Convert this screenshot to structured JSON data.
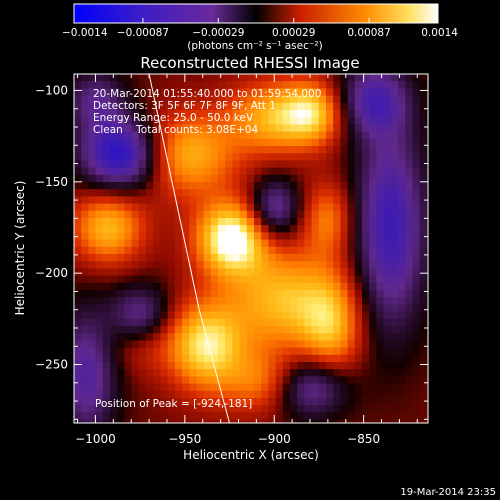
{
  "chart_data": {
    "type": "heatmap",
    "title": "Reconstructed RHESSI Image",
    "xlabel": "Heliocentric X (arcsec)",
    "ylabel": "Heliocentric Y (arcsec)",
    "xlim": [
      -1012,
      -814
    ],
    "ylim": [
      -282,
      -91
    ],
    "x_ticks": [
      -1000,
      -950,
      -900,
      -850
    ],
    "y_ticks": [
      -100,
      -150,
      -200,
      -250
    ],
    "x_tick_labels": [
      "−1000",
      "−950",
      "−900",
      "−850"
    ],
    "y_tick_labels": [
      "−100",
      "−150",
      "−200",
      "−250"
    ],
    "colorbar": {
      "min": -0.0014,
      "max": 0.0014,
      "tick_values": [
        -0.0014,
        -0.00087,
        -0.00029,
        0.00029,
        0.00087,
        0.0014
      ],
      "tick_labels": [
        "−0.0014",
        "−0.00087",
        "−0.00029",
        "0.00029",
        "0.00087",
        "0.0014"
      ],
      "units_label": "(photons cm⁻² s⁻¹ asec⁻²)"
    },
    "annotations": [
      "20-Mar-2014 01:55:40.000 to 01:59:54.000",
      "Detectors: 3F 5F 6F 7F 8F 9F, Att 1",
      "Energy Range: 25.0 - 50.0 keV",
      "Clean    Total counts: 3.08E+04"
    ],
    "peak_label": "Position of Peak = [-924,-181]",
    "peak_position": [
      -924,
      -181
    ],
    "limb_curve": [
      [
        -970,
        -91
      ],
      [
        -955,
        -160
      ],
      [
        -942,
        -220
      ],
      [
        -925,
        -282
      ]
    ],
    "blobs": [
      {
        "x": -924,
        "y": -181,
        "value": 0.00135,
        "sx": 14,
        "sy": 14
      },
      {
        "x": -938,
        "y": -240,
        "value": 0.0011,
        "sx": 15,
        "sy": 17
      },
      {
        "x": -950,
        "y": -135,
        "value": 0.0009,
        "sx": 20,
        "sy": 16
      },
      {
        "x": -900,
        "y": -115,
        "value": 0.00085,
        "sx": 18,
        "sy": 14
      },
      {
        "x": -895,
        "y": -215,
        "value": 0.0009,
        "sx": 22,
        "sy": 20
      },
      {
        "x": -993,
        "y": -175,
        "value": 0.0009,
        "sx": 14,
        "sy": 14
      },
      {
        "x": -878,
        "y": -112,
        "value": 0.0008,
        "sx": 12,
        "sy": 12
      },
      {
        "x": -868,
        "y": -230,
        "value": 0.00075,
        "sx": 12,
        "sy": 20
      },
      {
        "x": -870,
        "y": -170,
        "value": 0.0006,
        "sx": 10,
        "sy": 14
      },
      {
        "x": -975,
        "y": -235,
        "value": 0.0005,
        "sx": 14,
        "sy": 12
      },
      {
        "x": -905,
        "y": -260,
        "value": 0.0006,
        "sx": 16,
        "sy": 12
      },
      {
        "x": -985,
        "y": -135,
        "value": -0.0013,
        "sx": 16,
        "sy": 14
      },
      {
        "x": -975,
        "y": -225,
        "value": -0.0009,
        "sx": 12,
        "sy": 12
      },
      {
        "x": -880,
        "y": -262,
        "value": -0.0009,
        "sx": 15,
        "sy": 12
      },
      {
        "x": -900,
        "y": -165,
        "value": -0.0008,
        "sx": 10,
        "sy": 12
      },
      {
        "x": -835,
        "y": -175,
        "value": -0.001,
        "sx": 14,
        "sy": 40
      },
      {
        "x": -845,
        "y": -105,
        "value": -0.0008,
        "sx": 14,
        "sy": 14
      },
      {
        "x": -1005,
        "y": -255,
        "value": -0.0008,
        "sx": 12,
        "sy": 25
      },
      {
        "x": -1000,
        "y": -105,
        "value": -0.0006,
        "sx": 12,
        "sy": 12
      }
    ],
    "background_value": 0.00015
  },
  "footer": {
    "timestamp": "19-Mar-2014 23:35"
  }
}
